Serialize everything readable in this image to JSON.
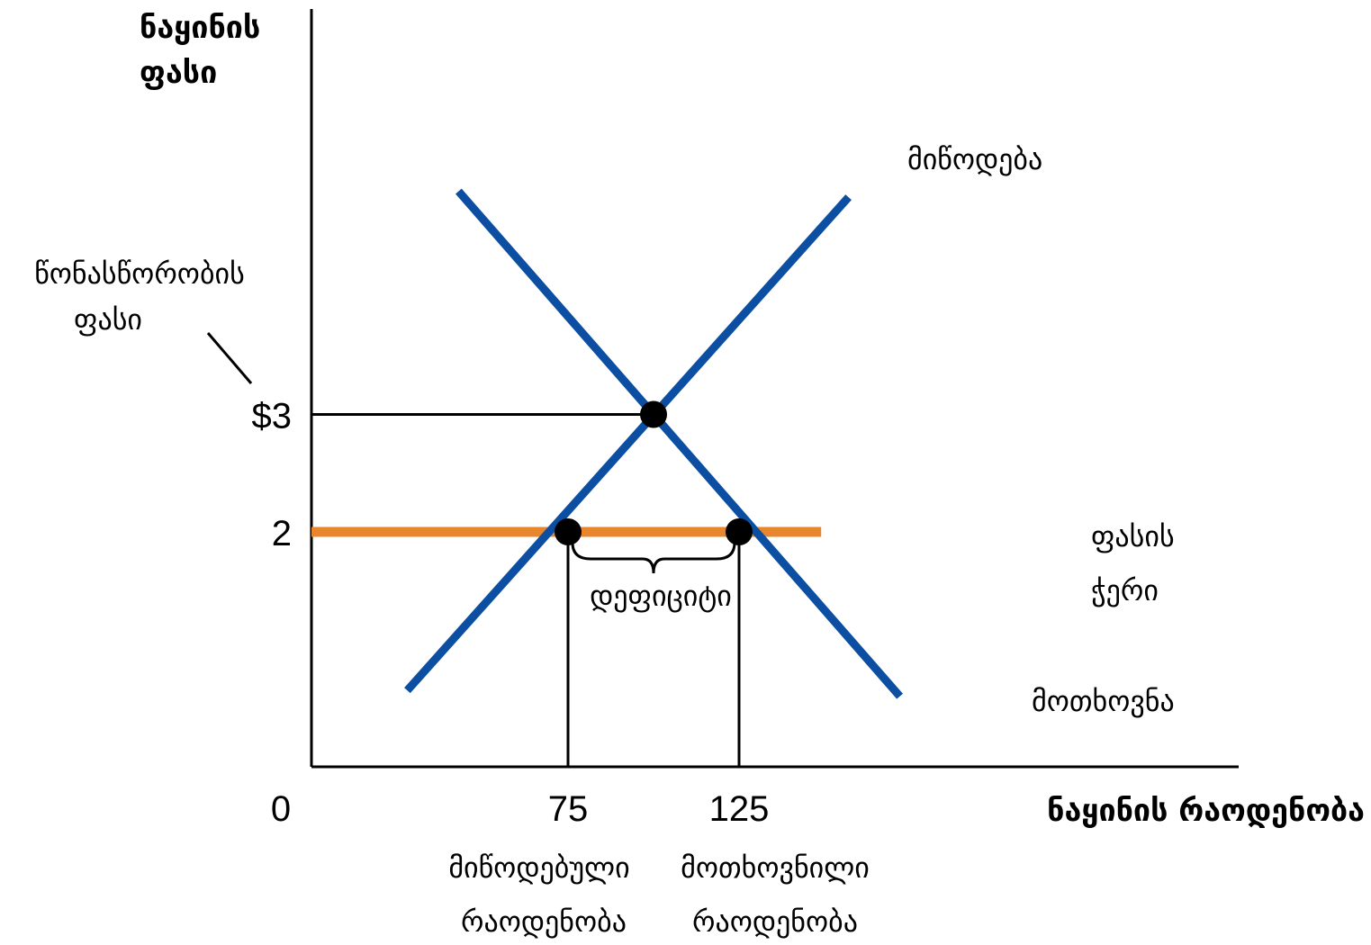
{
  "chart_data": {
    "type": "line",
    "title": "",
    "ylabel": [
      "ნაყინის",
      "ფასი"
    ],
    "xlabel": "ნაყინის რაოდენობა",
    "origin_label": "0",
    "colors": {
      "curves": "#0b4ea2",
      "price_floor": "#e8862e",
      "axes": "#000000"
    },
    "series": [
      {
        "name": "მიწოდება",
        "points": [
          [
            28,
            0.65
          ],
          [
            157,
            4.85
          ]
        ]
      },
      {
        "name": "მოთხოვნა",
        "points": [
          [
            43,
            4.9
          ],
          [
            172,
            0.6
          ]
        ]
      }
    ],
    "price_floor": {
      "label": [
        "ფასის",
        "ჭერი"
      ],
      "y": 2,
      "x_end": 149
    },
    "equilibrium": {
      "label": [
        "წონასწორობის",
        "ფასი"
      ],
      "x": 100,
      "y": 3,
      "y_tick_label": "$3"
    },
    "floor_points": [
      {
        "x": 75,
        "y": 2,
        "x_tick_label": "75",
        "label": [
          "მიწოდებული",
          "რაოდენობა"
        ]
      },
      {
        "x": 125,
        "y": 2,
        "x_tick_label": "125",
        "label": [
          "მოთხოვნილი",
          "რაოდენობა"
        ]
      }
    ],
    "y_ticks": [
      {
        "value": 2,
        "label": "2"
      }
    ],
    "brace_label": "დეფიციტი"
  }
}
